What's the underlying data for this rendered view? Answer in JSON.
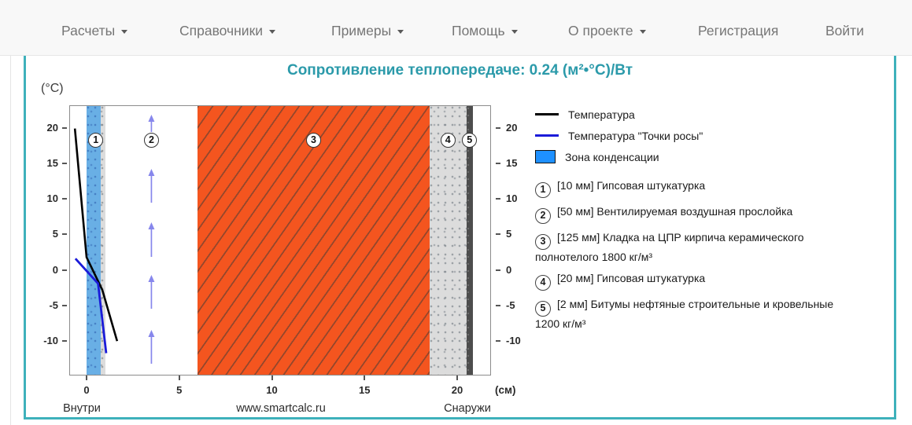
{
  "nav": {
    "items": [
      {
        "label": "Расчеты",
        "has_menu": true
      },
      {
        "label": "Справочники",
        "has_menu": true
      },
      {
        "label": "Примеры",
        "has_menu": true
      },
      {
        "label": "Помощь",
        "has_menu": true
      },
      {
        "label": "О проекте",
        "has_menu": true
      },
      {
        "label": "Регистрация",
        "has_menu": false
      },
      {
        "label": "Войти",
        "has_menu": false
      }
    ]
  },
  "title": "Сопротивление теплопередаче: 0.24 (м²•°С)/Вт",
  "colors": {
    "accent_teal": "#3eb1bb",
    "title_teal": "#2b9aaa",
    "brick_orange": "#f4551f",
    "condensation_fill": "#69afe5",
    "legend_zone_blue": "#1e90ff",
    "temperature_line": "#000000",
    "dew_point_line": "#1b1bd9",
    "air_arrow": "#8787ec"
  },
  "chart_data": {
    "type": "line",
    "title": "Сопротивление теплопередаче: 0.24 (м²•°С)/Вт",
    "x_axis": {
      "label": "(см)",
      "ticks": [
        0,
        5,
        10,
        15,
        20
      ],
      "range_cm": [
        -0.93,
        21.8
      ]
    },
    "y_axis": {
      "label": "(°C)",
      "ticks": [
        20,
        15,
        10,
        5,
        0,
        -5,
        -10
      ],
      "range_deg": [
        -14.8,
        23.2
      ]
    },
    "series": [
      {
        "name": "Температура",
        "color": "#000000",
        "points_cm_deg": [
          [
            -0.63,
            19.9
          ],
          [
            0,
            1.8
          ],
          [
            0.85,
            -2.8
          ],
          [
            1.65,
            -10.0
          ]
        ]
      },
      {
        "name": "Температура \"Точки росы\"",
        "color": "#1b1bd9",
        "points_cm_deg": [
          [
            -0.6,
            1.6
          ],
          [
            0.62,
            -1.9
          ],
          [
            1.06,
            -11.7
          ]
        ]
      }
    ],
    "condensation_zone_cm": [
      0,
      0.78
    ],
    "layers": [
      {
        "num": "1",
        "from_cm": 0,
        "to_cm": 1,
        "texture": "speckled-gray"
      },
      {
        "num": "2",
        "from_cm": 1,
        "to_cm": 6,
        "texture": "air-gap-arrows"
      },
      {
        "num": "3",
        "from_cm": 6,
        "to_cm": 18.5,
        "texture": "orange-hatch"
      },
      {
        "num": "4",
        "from_cm": 18.5,
        "to_cm": 20.5,
        "texture": "speckled-gray"
      },
      {
        "num": "5",
        "from_cm": 20.5,
        "to_cm": 20.7,
        "texture": "dark-solid"
      }
    ],
    "bottom_labels": {
      "left": "Внутри",
      "center": "www.smartcalc.ru",
      "right": "Снаружи"
    }
  },
  "legend": {
    "series": [
      {
        "swatch": "line",
        "color": "#000000",
        "label": "Температура"
      },
      {
        "swatch": "line",
        "color": "#1b1bd9",
        "label": "Температура \"Точки росы\""
      },
      {
        "swatch": "box",
        "color": "#1e90ff",
        "label": "Зона конденсации"
      }
    ],
    "items": [
      {
        "num": "1",
        "label": "[10 мм] Гипсовая штукатурка"
      },
      {
        "num": "2",
        "label": "[50 мм] Вентилируемая воздушная прослойка"
      },
      {
        "num": "3",
        "label": "[125 мм] Кладка на ЦПР кирпича керамического полнотелого 1800 кг/м³"
      },
      {
        "num": "4",
        "label": "[20 мм] Гипсовая штукатурка"
      },
      {
        "num": "5",
        "label": "[2 мм] Битумы нефтяные строительные и кровельные 1200 кг/м³"
      }
    ]
  }
}
